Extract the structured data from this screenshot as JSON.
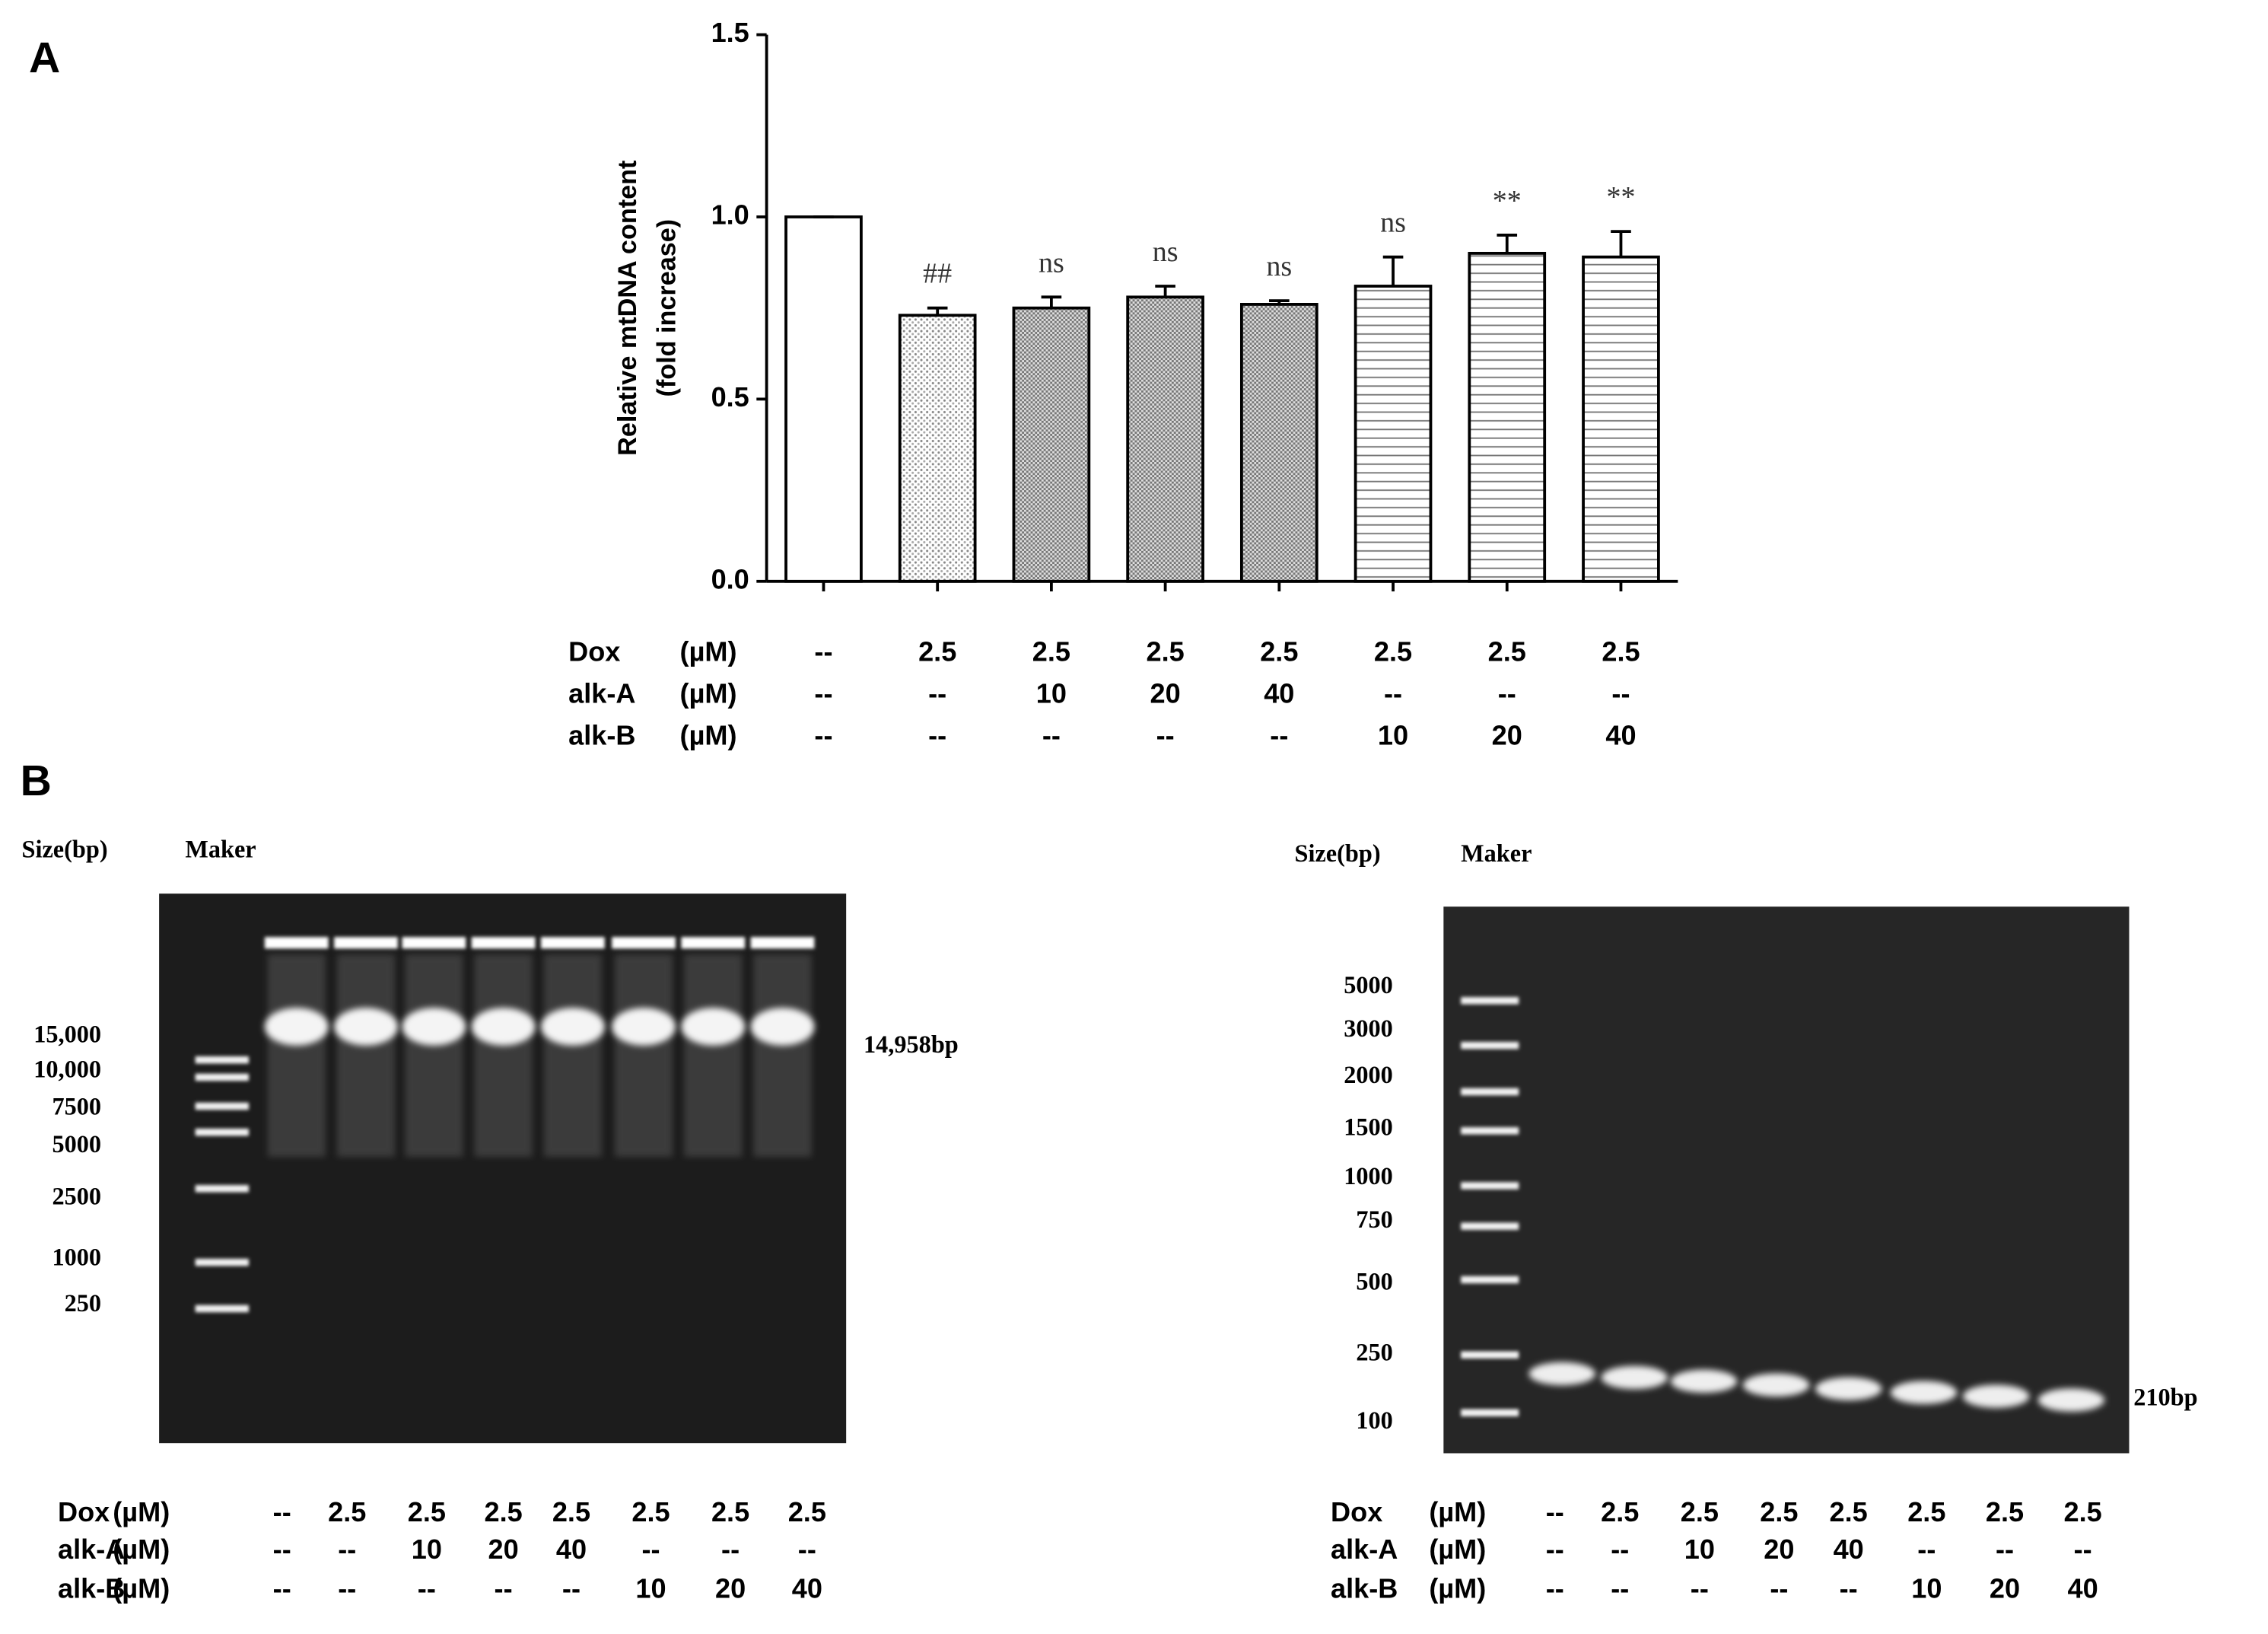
{
  "panel_labels": [
    "A",
    "B"
  ],
  "chart_data": {
    "type": "bar",
    "ylabel": [
      "Relative mtDNA content",
      "(fold increase)"
    ],
    "values": [
      1.0,
      0.73,
      0.75,
      0.78,
      0.76,
      0.81,
      0.9,
      0.89
    ],
    "errors": [
      0,
      0.02,
      0.03,
      0.03,
      0.01,
      0.08,
      0.05,
      0.07
    ],
    "annotations": [
      null,
      "##",
      "ns",
      "ns",
      "ns",
      "ns",
      "**",
      "**"
    ],
    "fill_patterns": [
      "none",
      "dots",
      "checker",
      "checker",
      "checker",
      "hlines",
      "hlines",
      "hlines"
    ],
    "ylim": [
      0,
      1.5
    ],
    "yticks": [
      {
        "value": 0,
        "label": "0.0"
      },
      0.5,
      {
        "value": 1,
        "label": "1.0"
      },
      1.5
    ],
    "treatments": [
      {
        "name": "Dox",
        "unit": "(µM)",
        "values": [
          "--",
          "2.5",
          "2.5",
          "2.5",
          "2.5",
          "2.5",
          "2.5",
          "2.5"
        ]
      },
      {
        "name": "alk-A",
        "unit": "(µM)",
        "values": [
          "--",
          "--",
          "10",
          "20",
          "40",
          "--",
          "--",
          "--"
        ]
      },
      {
        "name": "alk-B",
        "unit": "(µM)",
        "values": [
          "--",
          "--",
          "--",
          "--",
          "--",
          "10",
          "20",
          "40"
        ]
      }
    ]
  },
  "gels": [
    {
      "size_header": "Size(bp)",
      "marker_header": "Maker",
      "sizes": [
        "15,000",
        "10,000",
        "7500",
        "5000",
        "2500",
        "1000",
        "250"
      ],
      "band_label": "14,958bp",
      "treatments": [
        {
          "name": "Dox",
          "unit": "(µM)",
          "values": [
            "--",
            "2.5",
            "2.5",
            "2.5",
            "2.5",
            "2.5",
            "2.5",
            "2.5"
          ]
        },
        {
          "name": "alk-A",
          "unit": "(µM)",
          "values": [
            "--",
            "--",
            "10",
            "20",
            "40",
            "--",
            "--",
            "--"
          ]
        },
        {
          "name": "alk-B",
          "unit": "(µM)",
          "values": [
            "--",
            "--",
            "--",
            "--",
            "--",
            "10",
            "20",
            "40"
          ]
        }
      ]
    },
    {
      "size_header": "Size(bp)",
      "marker_header": "Maker",
      "sizes": [
        "5000",
        "3000",
        "2000",
        "1500",
        "1000",
        "750",
        "500",
        "250",
        "100"
      ],
      "band_label": "210bp",
      "treatments": [
        {
          "name": "Dox",
          "unit": "(µM)",
          "values": [
            "--",
            "2.5",
            "2.5",
            "2.5",
            "2.5",
            "2.5",
            "2.5",
            "2.5"
          ]
        },
        {
          "name": "alk-A",
          "unit": "(µM)",
          "values": [
            "--",
            "--",
            "10",
            "20",
            "40",
            "--",
            "--",
            "--"
          ]
        },
        {
          "name": "alk-B",
          "unit": "(µM)",
          "values": [
            "--",
            "--",
            "--",
            "--",
            "--",
            "10",
            "20",
            "40"
          ]
        }
      ]
    }
  ]
}
